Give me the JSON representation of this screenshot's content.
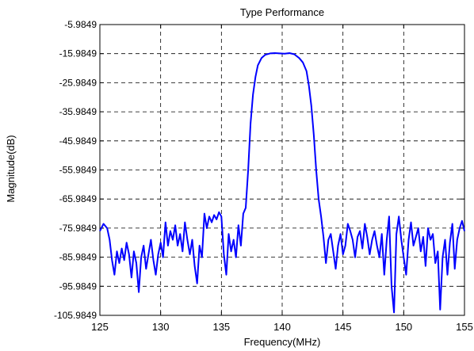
{
  "chart_data": {
    "type": "line",
    "title": "Type Performance",
    "xlabel": "Frequency(MHz)",
    "ylabel": "Magnitude(dB)",
    "xlim": [
      125,
      155
    ],
    "ylim": [
      -105.9849,
      -5.9849
    ],
    "x_ticks": [
      125,
      130,
      135,
      140,
      145,
      150,
      155
    ],
    "y_ticks": [
      -5.9849,
      -15.9849,
      -25.9849,
      -35.9849,
      -45.9849,
      -55.9849,
      -65.9849,
      -75.9849,
      -85.9849,
      -95.9849,
      -105.9849
    ],
    "x_tick_labels": [
      "125",
      "130",
      "135",
      "140",
      "145",
      "150",
      "155"
    ],
    "y_tick_labels": [
      "-5.9849",
      "-15.9849",
      "-25.9849",
      "-35.9849",
      "-45.9849",
      "-55.9849",
      "-65.9849",
      "-75.9849",
      "-85.9849",
      "-95.9849",
      "-105.9849"
    ],
    "grid": true,
    "grid_style": "dashed",
    "series": [
      {
        "color": "#0000ff",
        "x": [
          125.0,
          125.3,
          125.6,
          125.8,
          126.0,
          126.2,
          126.4,
          126.6,
          126.8,
          127.0,
          127.2,
          127.4,
          127.6,
          127.8,
          128.0,
          128.2,
          128.4,
          128.6,
          128.8,
          129.0,
          129.2,
          129.4,
          129.6,
          129.8,
          130.0,
          130.2,
          130.4,
          130.6,
          130.8,
          131.0,
          131.2,
          131.4,
          131.6,
          131.8,
          132.0,
          132.2,
          132.4,
          132.6,
          132.8,
          133.0,
          133.2,
          133.4,
          133.6,
          133.8,
          134.0,
          134.2,
          134.4,
          134.6,
          134.8,
          135.0,
          135.2,
          135.4,
          135.6,
          135.8,
          136.0,
          136.2,
          136.4,
          136.6,
          136.8,
          137.0,
          137.2,
          137.4,
          137.6,
          137.8,
          138.0,
          138.3,
          138.6,
          139.0,
          139.4,
          139.8,
          140.2,
          140.6,
          141.0,
          141.4,
          141.7,
          142.0,
          142.2,
          142.4,
          142.6,
          142.8,
          143.0,
          143.2,
          143.4,
          143.6,
          143.8,
          144.0,
          144.2,
          144.4,
          144.6,
          144.8,
          145.0,
          145.2,
          145.4,
          145.6,
          145.8,
          146.0,
          146.2,
          146.4,
          146.6,
          146.8,
          147.0,
          147.2,
          147.4,
          147.6,
          147.8,
          148.0,
          148.2,
          148.4,
          148.6,
          148.8,
          149.0,
          149.2,
          149.4,
          149.6,
          149.8,
          150.0,
          150.2,
          150.4,
          150.6,
          150.8,
          151.0,
          151.2,
          151.4,
          151.6,
          151.8,
          152.0,
          152.2,
          152.4,
          152.6,
          152.8,
          153.0,
          153.2,
          153.4,
          153.6,
          153.8,
          154.0,
          154.2,
          154.4,
          154.6,
          154.8,
          155.0
        ],
        "y": [
          -77.0,
          -74.5,
          -76.0,
          -80.0,
          -87.0,
          -92.0,
          -84.0,
          -88.0,
          -83.0,
          -87.0,
          -81.0,
          -85.0,
          -93.0,
          -84.0,
          -88.0,
          -98.0,
          -86.0,
          -82.0,
          -90.0,
          -85.0,
          -80.0,
          -87.0,
          -92.0,
          -85.0,
          -81.0,
          -86.0,
          -74.0,
          -82.0,
          -77.0,
          -80.0,
          -75.0,
          -82.0,
          -78.0,
          -84.0,
          -74.0,
          -80.0,
          -85.0,
          -80.0,
          -89.0,
          -95.0,
          -82.0,
          -86.0,
          -71.0,
          -76.0,
          -72.0,
          -74.0,
          -71.5,
          -73.0,
          -70.5,
          -72.0,
          -85.0,
          -92.0,
          -78.0,
          -84.0,
          -80.0,
          -86.0,
          -75.0,
          -82.0,
          -71.0,
          -69.0,
          -56.0,
          -40.0,
          -30.0,
          -24.0,
          -20.0,
          -17.5,
          -16.4,
          -15.9,
          -15.8,
          -15.9,
          -16.0,
          -15.8,
          -16.2,
          -17.5,
          -19.0,
          -22.0,
          -27.0,
          -34.0,
          -44.0,
          -56.0,
          -66.0,
          -72.0,
          -79.0,
          -88.0,
          -80.0,
          -78.0,
          -84.0,
          -90.0,
          -82.0,
          -78.0,
          -85.0,
          -82.0,
          -74.5,
          -77.0,
          -80.0,
          -86.0,
          -79.0,
          -77.0,
          -83.0,
          -74.5,
          -79.0,
          -85.0,
          -80.0,
          -77.0,
          -82.0,
          -86.0,
          -78.0,
          -92.0,
          -80.0,
          -72.0,
          -96.0,
          -105.0,
          -78.0,
          -72.0,
          -80.0,
          -86.0,
          -92.0,
          -80.0,
          -74.0,
          -82.0,
          -79.0,
          -76.0,
          -84.0,
          -79.0,
          -89.0,
          -76.0,
          -80.0,
          -78.0,
          -88.0,
          -84.0,
          -104.0,
          -86.0,
          -80.0,
          -92.0,
          -81.0,
          -74.5,
          -90.0,
          -80.0,
          -76.0,
          -73.5,
          -77.0
        ]
      }
    ]
  }
}
